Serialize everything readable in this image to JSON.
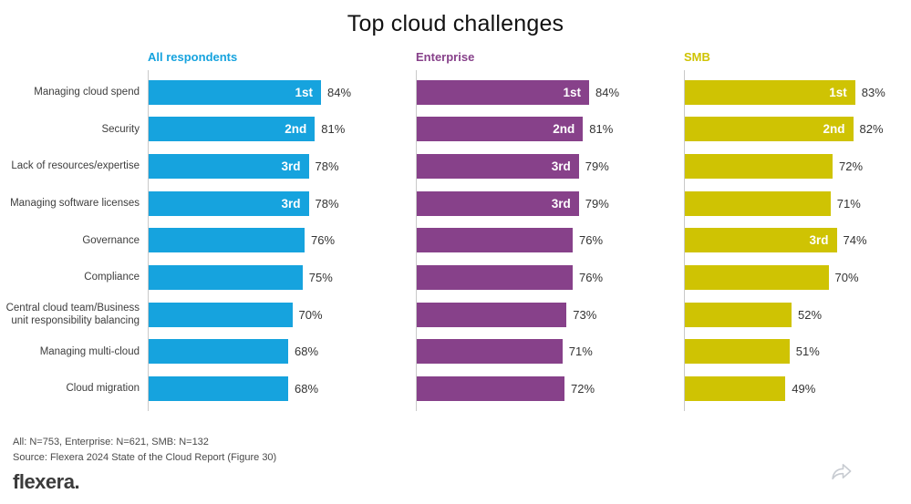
{
  "chart_data": {
    "type": "bar",
    "orientation": "horizontal",
    "title": "Top cloud challenges",
    "categories": [
      "Managing cloud spend",
      "Security",
      "Lack of resources/expertise",
      "Managing software licenses",
      "Governance",
      "Compliance",
      "Central cloud team/Business unit responsibility balancing",
      "Managing multi-cloud",
      "Cloud migration"
    ],
    "series": [
      {
        "name": "All respondents",
        "color": "#16a3de",
        "values": [
          84,
          81,
          78,
          78,
          76,
          75,
          70,
          68,
          68
        ],
        "ranks": [
          "1st",
          "2nd",
          "3rd",
          "3rd",
          "",
          "",
          "",
          "",
          ""
        ]
      },
      {
        "name": "Enterprise",
        "color": "#87418a",
        "values": [
          84,
          81,
          79,
          79,
          76,
          76,
          73,
          71,
          72
        ],
        "ranks": [
          "1st",
          "2nd",
          "3rd",
          "3rd",
          "",
          "",
          "",
          "",
          ""
        ]
      },
      {
        "name": "SMB",
        "color": "#cfc303",
        "values": [
          83,
          82,
          72,
          71,
          74,
          70,
          52,
          51,
          49
        ],
        "ranks": [
          "1st",
          "2nd",
          "",
          "",
          "3rd",
          "",
          "",
          "",
          ""
        ]
      }
    ],
    "value_suffix": "%",
    "xlim": [
      0,
      100
    ],
    "grid": false,
    "legend_position": "column-headers"
  },
  "footer": {
    "footnote": "All: N=753, Enterprise: N=621, SMB: N=132",
    "source": "Source: Flexera 2024 State of the Cloud Report (Figure 30)",
    "logo": "flexera."
  },
  "icons": {
    "share": "curved-share-arrow"
  }
}
